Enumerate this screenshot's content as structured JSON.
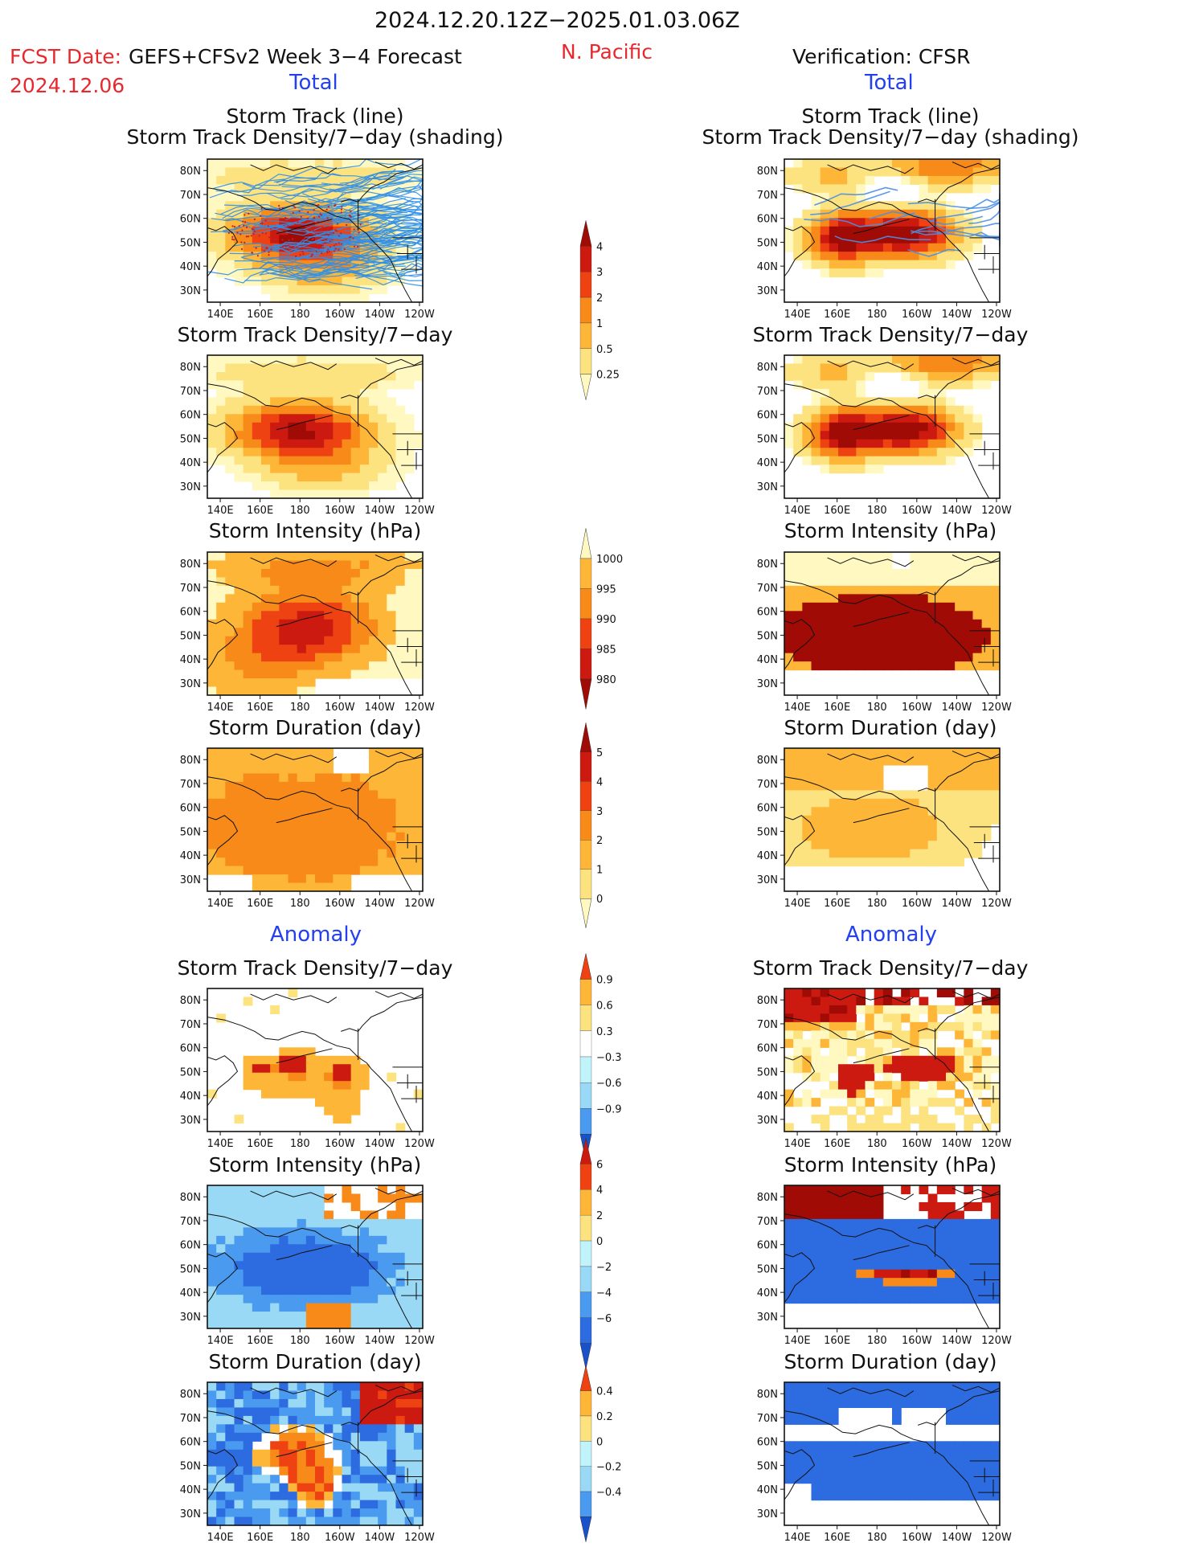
{
  "header": {
    "date_range": "2024.12.20.12Z−2025.01.03.06Z",
    "fcst_prefix": "FCST Date:",
    "forecast_source": "GEFS+CFSv2 Week 3−4 Forecast",
    "fcst_date": "2024.12.06",
    "region": "N. Pacific",
    "verification": "Verification: CFSR"
  },
  "sections": {
    "total_left": "Total",
    "total_right": "Total",
    "anomaly_left": "Anomaly",
    "anomaly_right": "Anomaly"
  },
  "panel_titles": {
    "track_line": "Storm Track (line)",
    "track_density_shading": "Storm Track Density/7−day (shading)",
    "density": "Storm Track Density/7−day",
    "intensity": "Storm Intensity (hPa)",
    "duration": "Storm Duration (day)"
  },
  "map_axes": {
    "lat_labels": [
      "80N",
      "70N",
      "60N",
      "50N",
      "40N",
      "30N"
    ],
    "lon_labels": [
      "140E",
      "160E",
      "180",
      "160W",
      "140W",
      "120W"
    ]
  },
  "colors": {
    "warm": [
      "#fff9c1",
      "#fde280",
      "#fdb637",
      "#f88a1a",
      "#ee4213",
      "#cc1a10",
      "#a00b06"
    ],
    "cool": [
      "#c1f3fb",
      "#99d9f5",
      "#4a9bef",
      "#2d6be0",
      "#1a50c8"
    ],
    "track_forecast": "#2f8fe8",
    "track_verification": "#4a8fe6"
  },
  "chart_data": [
    {
      "id": "cbar-density-total",
      "type": "colorbar",
      "ticks": [
        "0.25",
        "0.5",
        "1",
        "2",
        "3",
        "4"
      ],
      "colors": [
        "#fff9c1",
        "#fde280",
        "#fdb637",
        "#f88a1a",
        "#ee4213",
        "#cc1a10",
        "#a00b06"
      ]
    },
    {
      "id": "cbar-intensity-total",
      "type": "colorbar",
      "ticks": [
        "980",
        "985",
        "990",
        "995",
        "1000"
      ],
      "colors": [
        "#a00b06",
        "#cc1a10",
        "#ee4213",
        "#f88a1a",
        "#fdb637",
        "#fff9c1"
      ]
    },
    {
      "id": "cbar-duration-total",
      "type": "colorbar",
      "ticks": [
        "0",
        "1",
        "2",
        "3",
        "4",
        "5"
      ],
      "colors": [
        "#fff9c1",
        "#fde280",
        "#fdb637",
        "#f88a1a",
        "#ee4213",
        "#cc1a10",
        "#a00b06"
      ]
    },
    {
      "id": "cbar-density-anom",
      "type": "colorbar",
      "ticks": [
        "−0.9",
        "−0.6",
        "−0.3",
        "0.3",
        "0.6",
        "0.9"
      ],
      "colors": [
        "#1a50c8",
        "#4a9bef",
        "#99d9f5",
        "#c1f3fb",
        "#ffffff",
        "#fde280",
        "#fdb637",
        "#ee4213"
      ]
    },
    {
      "id": "cbar-intensity-anom",
      "type": "colorbar",
      "ticks": [
        "−6",
        "−4",
        "−2",
        "0",
        "2",
        "4",
        "6"
      ],
      "colors": [
        "#1a50c8",
        "#2d6be0",
        "#4a9bef",
        "#99d9f5",
        "#c1f3fb",
        "#fde280",
        "#fdb637",
        "#ee4213",
        "#cc1a10"
      ]
    },
    {
      "id": "cbar-duration-anom",
      "type": "colorbar",
      "ticks": [
        "−0.4",
        "−0.2",
        "0",
        "0.2",
        "0.4"
      ],
      "colors": [
        "#1a50c8",
        "#4a9bef",
        "#99d9f5",
        "#c1f3fb",
        "#fde280",
        "#fdb637",
        "#ee4213"
      ]
    }
  ]
}
